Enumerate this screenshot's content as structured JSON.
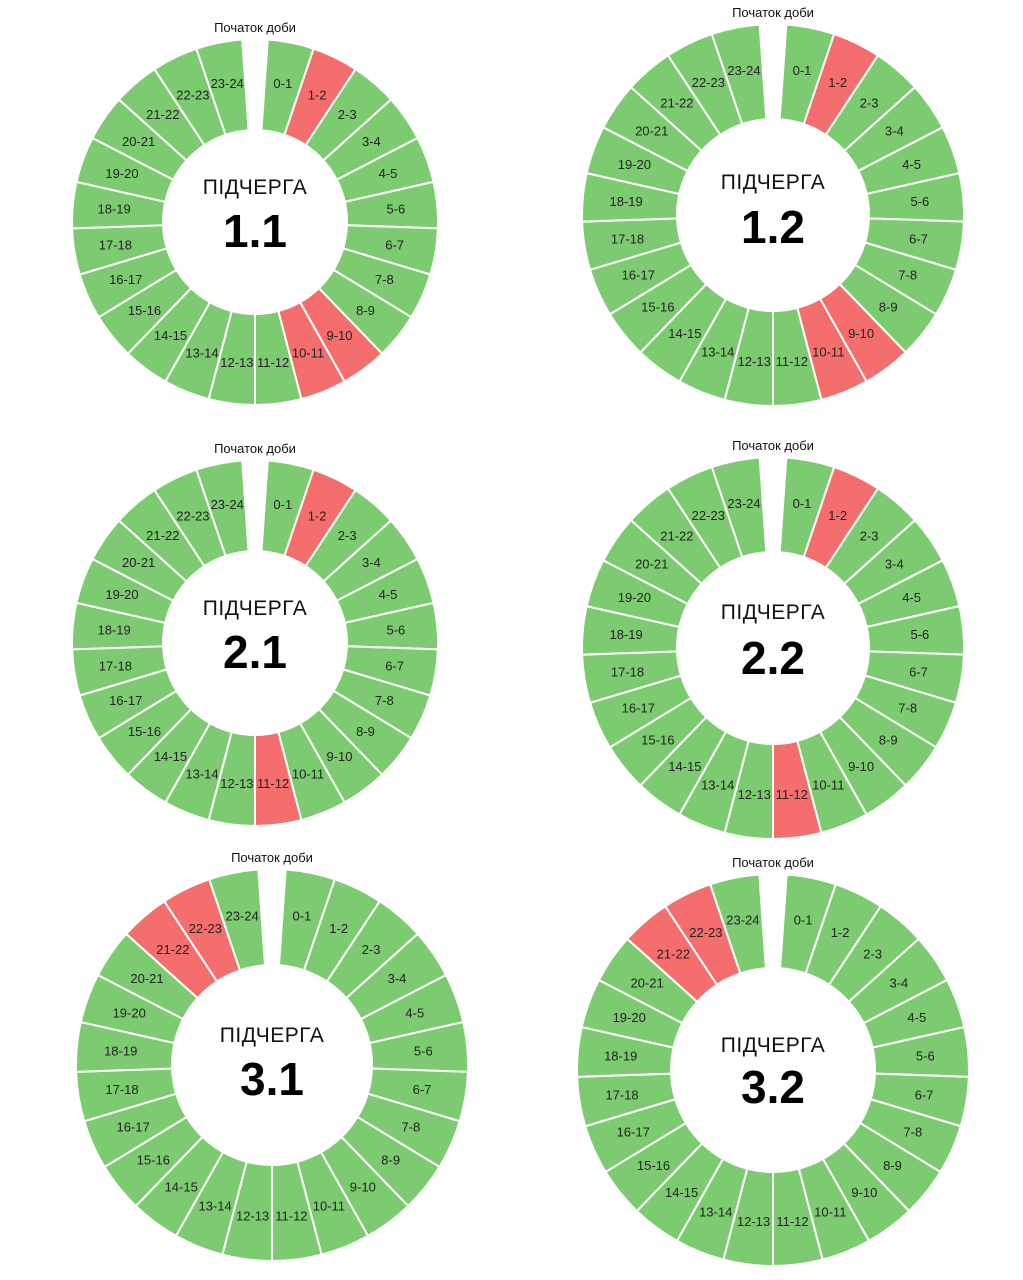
{
  "start_label": "Початок доби",
  "center_title": "ПІДЧЕРГА",
  "colors": {
    "on": "#7dcb70",
    "off": "#f56e6e",
    "background": "#ffffff"
  },
  "hours": [
    "0-1",
    "1-2",
    "2-3",
    "3-4",
    "4-5",
    "5-6",
    "6-7",
    "7-8",
    "8-9",
    "9-10",
    "10-11",
    "11-12",
    "12-13",
    "13-14",
    "14-15",
    "15-16",
    "16-17",
    "17-18",
    "18-19",
    "19-20",
    "20-21",
    "21-22",
    "22-23",
    "23-24"
  ],
  "chart_data": [
    {
      "type": "pie",
      "subqueue": "1.1",
      "off_hours": [
        "1-2",
        "9-10",
        "10-11"
      ]
    },
    {
      "type": "pie",
      "subqueue": "1.2",
      "off_hours": [
        "1-2",
        "9-10",
        "10-11"
      ]
    },
    {
      "type": "pie",
      "subqueue": "2.1",
      "off_hours": [
        "1-2",
        "11-12"
      ]
    },
    {
      "type": "pie",
      "subqueue": "2.2",
      "off_hours": [
        "1-2",
        "11-12"
      ]
    },
    {
      "type": "pie",
      "subqueue": "3.1",
      "off_hours": [
        "21-22",
        "22-23"
      ]
    },
    {
      "type": "pie",
      "subqueue": "3.2",
      "off_hours": [
        "21-22",
        "22-23"
      ]
    }
  ]
}
